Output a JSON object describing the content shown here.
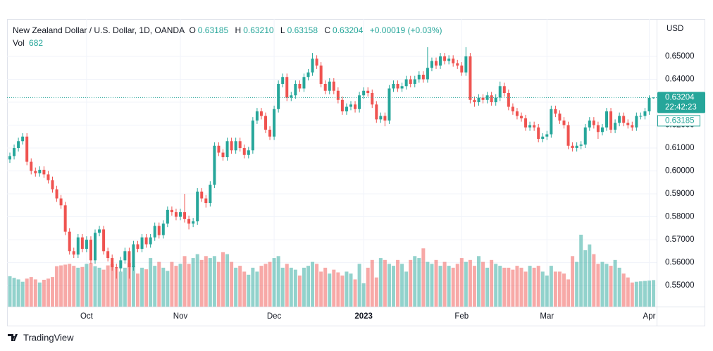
{
  "header": {
    "symbol": "New Zealand Dollar / U.S. Dollar, 1D, OANDA",
    "ohlc": [
      {
        "label": "O",
        "value": "0.63185"
      },
      {
        "label": "H",
        "value": "0.63210"
      },
      {
        "label": "L",
        "value": "0.63158"
      },
      {
        "label": "C",
        "value": "0.63204"
      }
    ],
    "change": "+0.00019 (+0.03%)",
    "volume_label": "Vol",
    "volume_value": "682"
  },
  "price_tags": {
    "currency": "USD",
    "last": "0.63204",
    "countdown": "22:42:23",
    "open": "0.63185"
  },
  "footer": {
    "brand": "TradingView"
  },
  "chart_data": {
    "type": "candlestick",
    "up_color": "#26a69a",
    "down_color": "#ef5350",
    "grid": true,
    "ylim": [
      0.5408,
      0.6663
    ],
    "yticks": [
      {
        "value": 0.55,
        "label": "0.55000"
      },
      {
        "value": 0.56,
        "label": "0.56000"
      },
      {
        "value": 0.57,
        "label": "0.57000"
      },
      {
        "value": 0.58,
        "label": "0.58000"
      },
      {
        "value": 0.59,
        "label": "0.59000"
      },
      {
        "value": 0.6,
        "label": "0.60000"
      },
      {
        "value": 0.61,
        "label": "0.61000"
      },
      {
        "value": 0.62,
        "label": "0.62000"
      },
      {
        "value": 0.63,
        "label": "0.63000"
      },
      {
        "value": 0.64,
        "label": "0.64000"
      },
      {
        "value": 0.65,
        "label": "0.65000"
      }
    ],
    "xticks": [
      {
        "value": 18,
        "label": "Oct"
      },
      {
        "value": 40,
        "label": "Nov"
      },
      {
        "value": 62,
        "label": "Dec"
      },
      {
        "value": 83,
        "label": "2023"
      },
      {
        "value": 106,
        "label": "Feb"
      },
      {
        "value": 126,
        "label": "Mar"
      },
      {
        "value": 150,
        "label": "Apr"
      }
    ],
    "open": [
      0.605,
      0.6065,
      0.61,
      0.613,
      0.615,
      0.604,
      0.6,
      0.599,
      0.6005,
      0.5985,
      0.596,
      0.592,
      0.588,
      0.585,
      0.5735,
      0.565,
      0.5635,
      0.571,
      0.566,
      0.57,
      0.561,
      0.573,
      0.5745,
      0.565,
      0.562,
      0.558,
      0.5575,
      0.561,
      0.565,
      0.558,
      0.568,
      0.566,
      0.571,
      0.568,
      0.571,
      0.576,
      0.572,
      0.577,
      0.583,
      0.582,
      0.58,
      0.582,
      0.579,
      0.577,
      0.578,
      0.591,
      0.588,
      0.586,
      0.594,
      0.611,
      0.608,
      0.606,
      0.613,
      0.609,
      0.613,
      0.61,
      0.607,
      0.609,
      0.622,
      0.626,
      0.624,
      0.618,
      0.615,
      0.627,
      0.638,
      0.641,
      0.632,
      0.633,
      0.638,
      0.636,
      0.641,
      0.643,
      0.649,
      0.646,
      0.638,
      0.635,
      0.639,
      0.635,
      0.631,
      0.626,
      0.628,
      0.629,
      0.627,
      0.633,
      0.635,
      0.634,
      0.629,
      0.6225,
      0.624,
      0.622,
      0.636,
      0.638,
      0.636,
      0.637,
      0.64,
      0.638,
      0.64,
      0.642,
      0.64,
      0.645,
      0.648,
      0.646,
      0.65,
      0.648,
      0.649,
      0.647,
      0.646,
      0.643,
      0.65,
      0.631,
      0.63,
      0.632,
      0.631,
      0.633,
      0.63,
      0.632,
      0.637,
      0.634,
      0.628,
      0.626,
      0.624,
      0.623,
      0.619,
      0.62,
      0.619,
      0.614,
      0.615,
      0.616,
      0.627,
      0.625,
      0.622,
      0.62,
      0.611,
      0.61,
      0.611,
      0.6115,
      0.619,
      0.622,
      0.62,
      0.617,
      0.619,
      0.626,
      0.618,
      0.621,
      0.624,
      0.621,
      0.62,
      0.619,
      0.624,
      0.624,
      0.626,
      0.63185
    ],
    "high": [
      0.608,
      0.6115,
      0.6145,
      0.6165,
      0.6165,
      0.6055,
      0.6015,
      0.602,
      0.602,
      0.6,
      0.5975,
      0.5935,
      0.5895,
      0.5865,
      0.575,
      0.5665,
      0.5725,
      0.5725,
      0.5715,
      0.5715,
      0.5745,
      0.576,
      0.576,
      0.5665,
      0.5635,
      0.5595,
      0.5625,
      0.5665,
      0.5665,
      0.5695,
      0.5695,
      0.5725,
      0.5725,
      0.5725,
      0.5775,
      0.5775,
      0.5785,
      0.5845,
      0.5845,
      0.5835,
      0.5835,
      0.59,
      0.5805,
      0.5795,
      0.5925,
      0.5925,
      0.5895,
      0.5955,
      0.6125,
      0.6125,
      0.6095,
      0.6145,
      0.6145,
      0.6145,
      0.6145,
      0.6115,
      0.6105,
      0.6235,
      0.6275,
      0.6275,
      0.6255,
      0.6195,
      0.6285,
      0.6395,
      0.6425,
      0.6425,
      0.6345,
      0.6395,
      0.6395,
      0.6425,
      0.6445,
      0.6515,
      0.6505,
      0.6475,
      0.6395,
      0.6405,
      0.6405,
      0.6365,
      0.6325,
      0.6295,
      0.6305,
      0.6305,
      0.6345,
      0.6365,
      0.6365,
      0.6355,
      0.6305,
      0.6255,
      0.6255,
      0.6375,
      0.6395,
      0.6395,
      0.6385,
      0.6415,
      0.6415,
      0.6415,
      0.6435,
      0.6435,
      0.654,
      0.6495,
      0.6495,
      0.6515,
      0.6515,
      0.6505,
      0.6505,
      0.6485,
      0.6475,
      0.654,
      0.6515,
      0.6325,
      0.6335,
      0.6335,
      0.6345,
      0.6345,
      0.6335,
      0.639,
      0.6385,
      0.6355,
      0.6295,
      0.6275,
      0.6255,
      0.6245,
      0.6215,
      0.6215,
      0.6205,
      0.6165,
      0.6175,
      0.6285,
      0.6285,
      0.6265,
      0.6235,
      0.6215,
      0.6125,
      0.6125,
      0.613,
      0.6205,
      0.6235,
      0.6235,
      0.6215,
      0.6205,
      0.6275,
      0.6275,
      0.6225,
      0.6255,
      0.6255,
      0.6225,
      0.6215,
      0.6255,
      0.6255,
      0.6275,
      0.633,
      0.6321
    ],
    "low": [
      0.6035,
      0.605,
      0.6085,
      0.6115,
      0.6025,
      0.5985,
      0.5975,
      0.5975,
      0.597,
      0.5945,
      0.5905,
      0.5865,
      0.5835,
      0.572,
      0.5635,
      0.562,
      0.562,
      0.5645,
      0.5645,
      0.5595,
      0.5595,
      0.5715,
      0.5635,
      0.5605,
      0.5565,
      0.553,
      0.556,
      0.5595,
      0.553,
      0.5565,
      0.5645,
      0.5645,
      0.5665,
      0.5665,
      0.5695,
      0.5705,
      0.5705,
      0.5755,
      0.5805,
      0.5785,
      0.5785,
      0.5775,
      0.5745,
      0.5755,
      0.5765,
      0.5865,
      0.584,
      0.5845,
      0.5925,
      0.6065,
      0.6045,
      0.6045,
      0.6075,
      0.6075,
      0.6085,
      0.6055,
      0.6055,
      0.6075,
      0.6205,
      0.6225,
      0.6165,
      0.6135,
      0.6135,
      0.6255,
      0.6365,
      0.6305,
      0.6305,
      0.6315,
      0.6345,
      0.6345,
      0.6395,
      0.6415,
      0.6445,
      0.6365,
      0.6335,
      0.6335,
      0.6335,
      0.6295,
      0.6245,
      0.6245,
      0.6265,
      0.6255,
      0.6255,
      0.6315,
      0.6325,
      0.6275,
      0.621,
      0.621,
      0.6195,
      0.6205,
      0.6345,
      0.6345,
      0.6345,
      0.6355,
      0.6365,
      0.6365,
      0.6385,
      0.6385,
      0.6385,
      0.6435,
      0.6445,
      0.6445,
      0.6465,
      0.6465,
      0.6455,
      0.6445,
      0.6415,
      0.6415,
      0.6295,
      0.628,
      0.6285,
      0.6295,
      0.6295,
      0.6285,
      0.6285,
      0.6305,
      0.6325,
      0.6265,
      0.6245,
      0.6225,
      0.6215,
      0.6175,
      0.6175,
      0.6175,
      0.6125,
      0.6125,
      0.6135,
      0.6145,
      0.6235,
      0.6205,
      0.6185,
      0.6095,
      0.6085,
      0.6085,
      0.6095,
      0.61,
      0.6175,
      0.6185,
      0.614,
      0.6155,
      0.6175,
      0.6165,
      0.6165,
      0.6195,
      0.6195,
      0.6185,
      0.6175,
      0.6175,
      0.6225,
      0.6225,
      0.6245,
      0.63158
    ],
    "close": [
      0.6065,
      0.61,
      0.613,
      0.615,
      0.604,
      0.6,
      0.599,
      0.6005,
      0.5985,
      0.596,
      0.592,
      0.588,
      0.585,
      0.5735,
      0.565,
      0.5635,
      0.571,
      0.566,
      0.57,
      0.561,
      0.573,
      0.5745,
      0.565,
      0.562,
      0.558,
      0.5575,
      0.561,
      0.565,
      0.558,
      0.568,
      0.566,
      0.571,
      0.568,
      0.571,
      0.576,
      0.572,
      0.577,
      0.583,
      0.582,
      0.58,
      0.582,
      0.579,
      0.577,
      0.578,
      0.591,
      0.588,
      0.586,
      0.594,
      0.611,
      0.608,
      0.606,
      0.613,
      0.609,
      0.613,
      0.61,
      0.607,
      0.609,
      0.622,
      0.626,
      0.624,
      0.618,
      0.615,
      0.627,
      0.638,
      0.641,
      0.632,
      0.633,
      0.638,
      0.636,
      0.641,
      0.643,
      0.649,
      0.646,
      0.638,
      0.635,
      0.639,
      0.635,
      0.631,
      0.626,
      0.628,
      0.629,
      0.627,
      0.633,
      0.635,
      0.634,
      0.629,
      0.6225,
      0.624,
      0.622,
      0.636,
      0.638,
      0.636,
      0.637,
      0.64,
      0.638,
      0.64,
      0.642,
      0.64,
      0.645,
      0.648,
      0.646,
      0.65,
      0.648,
      0.649,
      0.647,
      0.646,
      0.643,
      0.65,
      0.631,
      0.63,
      0.632,
      0.631,
      0.633,
      0.63,
      0.632,
      0.637,
      0.634,
      0.628,
      0.626,
      0.624,
      0.623,
      0.619,
      0.62,
      0.619,
      0.614,
      0.615,
      0.616,
      0.627,
      0.625,
      0.622,
      0.62,
      0.611,
      0.61,
      0.611,
      0.6115,
      0.619,
      0.622,
      0.62,
      0.617,
      0.619,
      0.626,
      0.618,
      0.621,
      0.624,
      0.621,
      0.62,
      0.619,
      0.624,
      0.624,
      0.626,
      0.63185,
      0.63204
    ],
    "volume": [
      780,
      740,
      700,
      640,
      720,
      760,
      700,
      620,
      690,
      720,
      760,
      1040,
      1060,
      1080,
      1100,
      1050,
      1000,
      1020,
      1100,
      1120,
      1040,
      1000,
      950,
      1060,
      1100,
      980,
      900,
      1000,
      1120,
      1050,
      850,
      1000,
      960,
      1250,
      1050,
      1150,
      1000,
      920,
      1150,
      1050,
      1100,
      1300,
      1100,
      1250,
      1350,
      1200,
      1300,
      1250,
      1300,
      1150,
      1400,
      1350,
      1150,
      1000,
      1050,
      900,
      820,
      1000,
      900,
      1050,
      1100,
      1150,
      1250,
      1300,
      1000,
      1100,
      1000,
      950,
      800,
      1000,
      1050,
      1150,
      1100,
      900,
      1000,
      850,
      950,
      880,
      800,
      900,
      850,
      700,
      1100,
      600,
      1000,
      1200,
      750,
      1250,
      1200,
      1100,
      1050,
      1200,
      1100,
      900,
      1200,
      1300,
      1250,
      1500,
      1150,
      1100,
      1200,
      1050,
      1150,
      1050,
      1000,
      1100,
      1250,
      1150,
      1200,
      1050,
      1300,
      1150,
      1000,
      1200,
      1100,
      1050,
      1000,
      1000,
      950,
      1050,
      1000,
      900,
      1050,
      1000,
      1050,
      900,
      800,
      1050,
      900,
      900,
      850,
      700,
      1300,
      1150,
      1850,
      1450,
      1600,
      1350,
      1100,
      1150,
      1100,
      1050,
      1200,
      1000,
      850,
      750,
      620,
      640,
      650,
      660,
      670,
      682
    ]
  }
}
